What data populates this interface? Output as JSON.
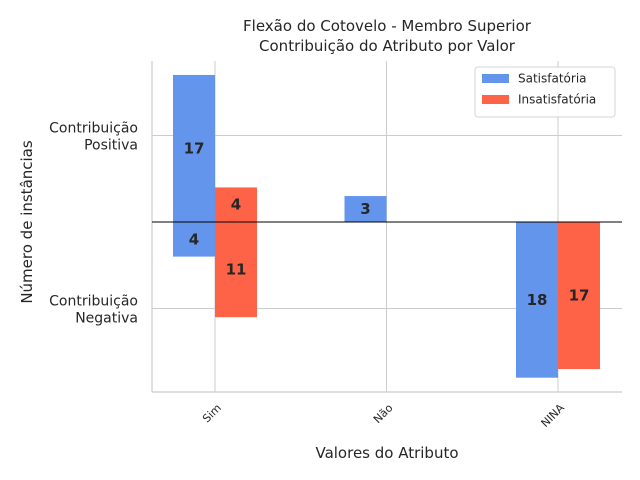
{
  "chart_data": {
    "type": "bar",
    "title": [
      "Flexão do Cotovelo - Membro Superior",
      "Contribuição do Atributo por Valor"
    ],
    "xlabel": "Valores do Atributo",
    "ylabel": "Número de instâncias",
    "categories": [
      "Sim",
      "Não",
      "NINA"
    ],
    "ytick_labels": [
      {
        "lines": [
          "Contribuição",
          "Positiva"
        ],
        "value": 10
      },
      {
        "lines": [
          "Contribuição",
          "Negativa"
        ],
        "value": -10
      }
    ],
    "ylim": [
      -23,
      22
    ],
    "grid": true,
    "legend_position": "top-right",
    "series": [
      {
        "name": "Satisfatória",
        "color": "#6495ED",
        "positive": [
          17,
          3,
          null
        ],
        "negative": [
          4,
          null,
          18
        ]
      },
      {
        "name": "Insatisfatória",
        "color": "#FF6347",
        "positive": [
          4,
          null,
          null
        ],
        "negative": [
          11,
          null,
          17
        ]
      }
    ]
  }
}
